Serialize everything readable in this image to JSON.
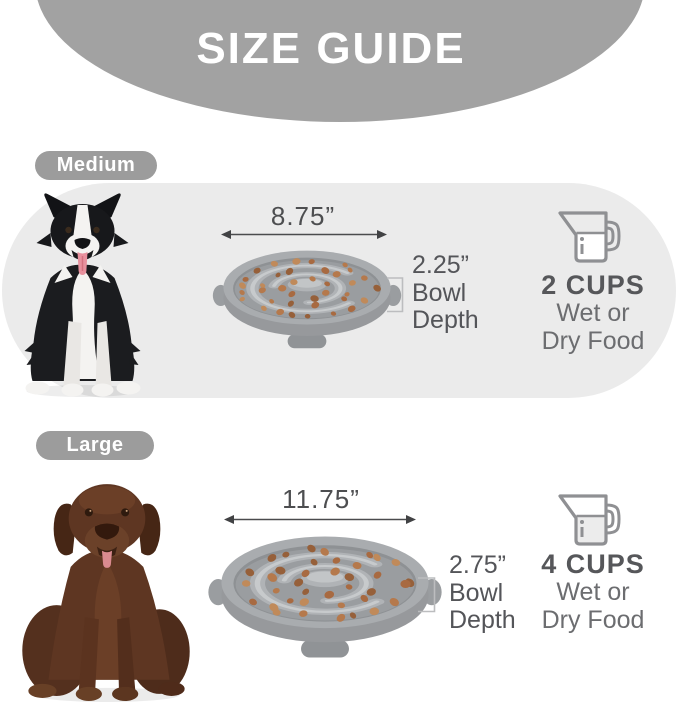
{
  "header": {
    "title": "SIZE GUIDE"
  },
  "sections": [
    {
      "size_label": "Medium",
      "dog_image": "border-collie-dog",
      "bowl_width": "8.75”",
      "depth": {
        "value": "2.25”",
        "line2": "Bowl",
        "line3": "Depth"
      },
      "capacity": {
        "cups": "2 CUPS",
        "line2": "Wet or",
        "line3": "Dry Food"
      },
      "cup_icon": "measuring-cup-icon"
    },
    {
      "size_label": "Large",
      "dog_image": "chocolate-labrador-dog",
      "bowl_width": "11.75”",
      "depth": {
        "value": "2.75”",
        "line2": "Bowl",
        "line3": "Depth"
      },
      "capacity": {
        "cups": "4 CUPS",
        "line2": "Wet or",
        "line3": "Dry Food"
      },
      "cup_icon": "measuring-cup-icon"
    }
  ],
  "colors": {
    "header_gray": "#a2a2a2",
    "pill_gray": "#9c9c9c",
    "panel_gray": "#ebebeb",
    "text_dark": "#4d4e50",
    "text_bold": "#56575a",
    "text_light": "#6c6d70",
    "bowl_gray": "#a9acaf",
    "kibble_brown": "#b5794c"
  }
}
